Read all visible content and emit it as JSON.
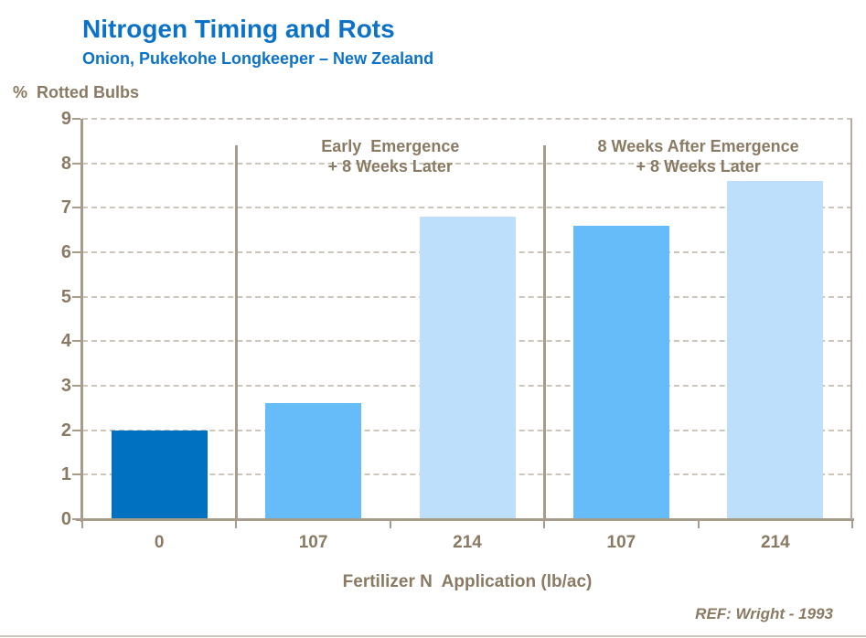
{
  "chart_data": {
    "type": "bar",
    "title": "Nitrogen Timing and Rots",
    "subtitle": "Onion, Pukekohe Longkeeper – New Zealand",
    "ylabel": "%  Rotted Bulbs",
    "xlabel": "Fertilizer N  Application (lb/ac)",
    "ylim": [
      0,
      9
    ],
    "yticks": [
      0,
      1,
      2,
      3,
      4,
      5,
      6,
      7,
      8,
      9
    ],
    "grid": "horizontal-dashed",
    "legend": "none",
    "categories": [
      "0",
      "107",
      "214",
      "107",
      "214"
    ],
    "values": [
      2.0,
      2.6,
      6.8,
      6.6,
      7.6
    ],
    "bar_colors": [
      "#0070C0",
      "#66BBF9",
      "#BEDFFB",
      "#66BBF9",
      "#BEDFFB"
    ],
    "groups": [
      {
        "line1": "Early  Emergence",
        "line2": "+ 8 Weeks Later",
        "span": [
          1,
          2
        ]
      },
      {
        "line1": "8 Weeks After Emergence",
        "line2": "+ 8 Weeks Later",
        "span": [
          3,
          4
        ]
      }
    ],
    "group_dividers": [
      1,
      3
    ],
    "divider_top_value": 8.4,
    "reference": "REF: Wright - 1993"
  },
  "colors": {
    "title_blue": "#0C72C8",
    "label_brown": "#8A7A63",
    "axis_tan": "#A79C8B",
    "grid_tan": "#BCB2A2",
    "bar_dark_blue": "#0070C0",
    "bar_medium_blue": "#66BBF9",
    "bar_light_blue": "#BEDFFB"
  }
}
